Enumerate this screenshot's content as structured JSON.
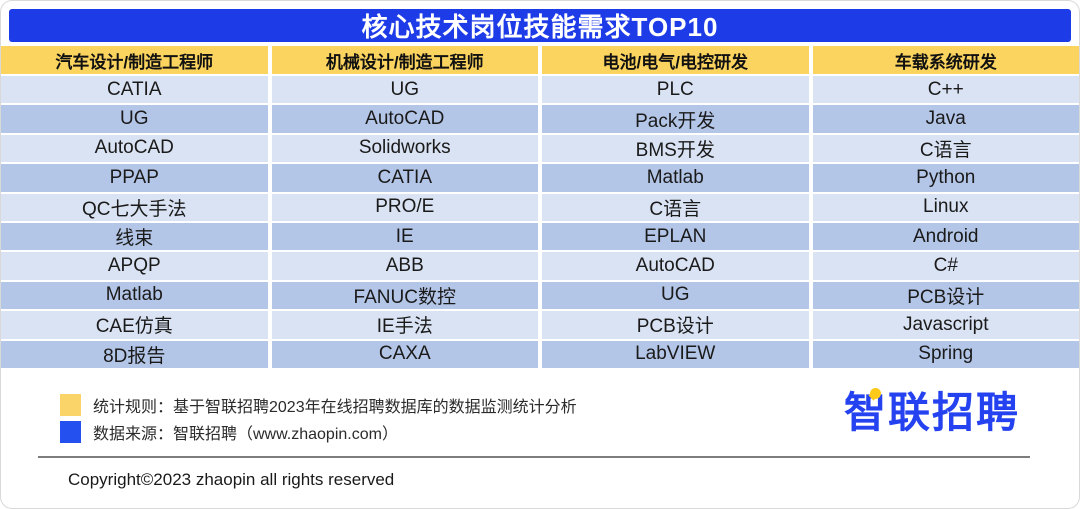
{
  "title": "核心技术岗位技能需求TOP10",
  "chart_data": {
    "type": "table",
    "title": "核心技术岗位技能需求TOP10",
    "columns": [
      "汽车设计/制造工程师",
      "机械设计/制造工程师",
      "电池/电气/电控研发",
      "车载系统研发"
    ],
    "rows": [
      [
        "CATIA",
        "UG",
        "PLC",
        "C++"
      ],
      [
        "UG",
        "AutoCAD",
        "Pack开发",
        "Java"
      ],
      [
        "AutoCAD",
        "Solidworks",
        "BMS开发",
        "C语言"
      ],
      [
        "PPAP",
        "CATIA",
        "Matlab",
        "Python"
      ],
      [
        "QC七大手法",
        "PRO/E",
        "C语言",
        "Linux"
      ],
      [
        "线束",
        "IE",
        "EPLAN",
        "Android"
      ],
      [
        "APQP",
        "ABB",
        "AutoCAD",
        "C#"
      ],
      [
        "Matlab",
        "FANUC数控",
        "UG",
        "PCB设计"
      ],
      [
        "CAE仿真",
        "IE手法",
        "PCB设计",
        "Javascript"
      ],
      [
        "8D报告",
        "CAXA",
        "LabVIEW",
        "Spring"
      ]
    ]
  },
  "table": {
    "columns": [
      {
        "header": "汽车设计/制造工程师",
        "skills": [
          "CATIA",
          "UG",
          "AutoCAD",
          "PPAP",
          "QC七大手法",
          "线束",
          "APQP",
          "Matlab",
          "CAE仿真",
          "8D报告"
        ]
      },
      {
        "header": "机械设计/制造工程师",
        "skills": [
          "UG",
          "AutoCAD",
          "Solidworks",
          "CATIA",
          "PRO/E",
          "IE",
          "ABB",
          "FANUC数控",
          "IE手法",
          "CAXA"
        ]
      },
      {
        "header": "电池/电气/电控研发",
        "skills": [
          "PLC",
          "Pack开发",
          "BMS开发",
          "Matlab",
          "C语言",
          "EPLAN",
          "AutoCAD",
          "UG",
          "PCB设计",
          "LabVIEW"
        ]
      },
      {
        "header": "车载系统研发",
        "skills": [
          "C++",
          "Java",
          "C语言",
          "Python",
          "Linux",
          "Android",
          "C#",
          "PCB设计",
          "Javascript",
          "Spring"
        ]
      }
    ]
  },
  "footnotes": [
    {
      "text": "统计规则：基于智联招聘2023年在线招聘数据库的数据监测统计分析",
      "swatch_color": "#fbd469"
    },
    {
      "text": "数据来源：智联招聘（www.zhaopin.com）",
      "swatch_color": "#2450f0"
    }
  ],
  "logo": {
    "text": "智联招聘"
  },
  "copyright": "Copyright©2023 zhaopin all rights reserved",
  "colors": {
    "title_bar": "#1e3be8",
    "header_row": "#fbd45f",
    "row_light": "#dae3f3",
    "row_dark": "#b4c6e7",
    "logo_blue": "#2542f0",
    "logo_pin_yellow": "#ffc919"
  }
}
